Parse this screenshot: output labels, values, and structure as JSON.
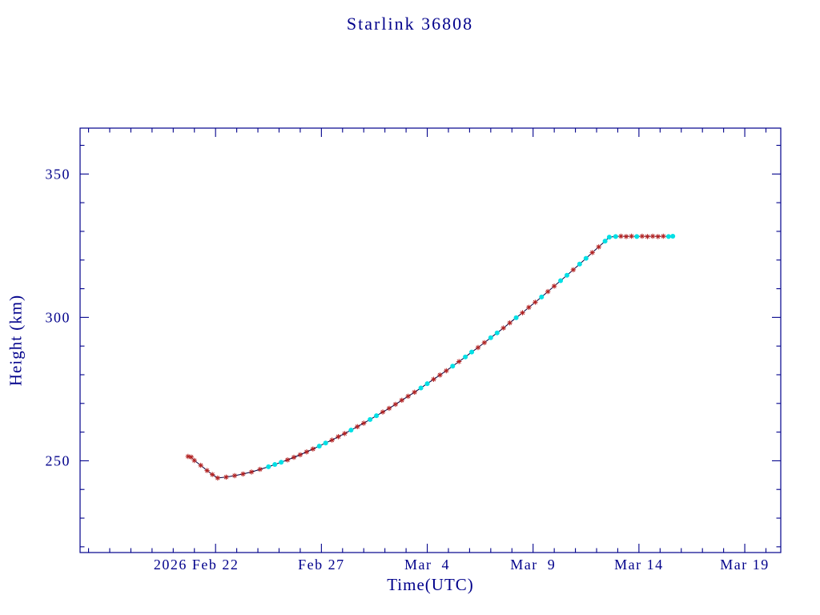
{
  "chart_data": {
    "type": "line",
    "title": "Starlink 36808",
    "xlabel": "Time(UTC)",
    "ylabel": "Height (km)",
    "x_range": [
      -3.4,
      29.7
    ],
    "y_range": [
      218,
      366
    ],
    "x_minor_step": 1,
    "y_minor_step": 10,
    "xticks": [
      {
        "t": 3,
        "label": "2026 Feb 22",
        "dx": -24
      },
      {
        "t": 8,
        "label": "Feb 27",
        "dx": 0
      },
      {
        "t": 13,
        "label": "Mar  4",
        "dx": 0
      },
      {
        "t": 18,
        "label": "Mar  9",
        "dx": 0
      },
      {
        "t": 23,
        "label": "Mar 14",
        "dx": 0
      },
      {
        "t": 28,
        "label": "Mar 19",
        "dx": 0
      }
    ],
    "yticks": [
      {
        "v": 250,
        "label": "250"
      },
      {
        "v": 300,
        "label": "300"
      },
      {
        "v": 350,
        "label": "350"
      }
    ],
    "colors": {
      "axis": "#00008B",
      "line": "#000040",
      "red_marker": "#B22222",
      "cyan_marker": "#00E0E5",
      "background": "#FFFFFF"
    },
    "series": [
      {
        "name": "height_km",
        "marker_key": {
          "r": "red-asterisk",
          "c": "cyan-dot"
        },
        "points": [
          [
            1.7,
            251.5,
            "r"
          ],
          [
            1.85,
            251.3,
            "r"
          ],
          [
            2.0,
            250.1,
            "r"
          ],
          [
            2.3,
            248.4,
            "r"
          ],
          [
            2.6,
            246.6,
            "r"
          ],
          [
            2.85,
            245.2,
            "r"
          ],
          [
            3.1,
            244.0,
            "r"
          ],
          [
            3.5,
            244.3,
            "r"
          ],
          [
            3.9,
            244.8,
            "r"
          ],
          [
            4.3,
            245.4,
            "r"
          ],
          [
            4.7,
            246.1,
            "r"
          ],
          [
            5.1,
            247.0,
            "r"
          ],
          [
            5.5,
            247.9,
            "c"
          ],
          [
            5.8,
            248.7,
            "c"
          ],
          [
            6.1,
            249.5,
            "c"
          ],
          [
            6.4,
            250.3,
            "r"
          ],
          [
            6.7,
            251.2,
            "r"
          ],
          [
            7.0,
            252.1,
            "r"
          ],
          [
            7.3,
            253.1,
            "r"
          ],
          [
            7.6,
            254.1,
            "r"
          ],
          [
            7.9,
            255.1,
            "c"
          ],
          [
            8.2,
            256.2,
            "c"
          ],
          [
            8.5,
            257.2,
            "r"
          ],
          [
            8.8,
            258.4,
            "r"
          ],
          [
            9.1,
            259.5,
            "r"
          ],
          [
            9.4,
            260.7,
            "c"
          ],
          [
            9.7,
            261.9,
            "r"
          ],
          [
            10.0,
            263.1,
            "r"
          ],
          [
            10.3,
            264.4,
            "c"
          ],
          [
            10.6,
            265.7,
            "c"
          ],
          [
            10.9,
            267.0,
            "r"
          ],
          [
            11.2,
            268.3,
            "r"
          ],
          [
            11.5,
            269.7,
            "r"
          ],
          [
            11.8,
            271.1,
            "r"
          ],
          [
            12.1,
            272.5,
            "r"
          ],
          [
            12.4,
            273.9,
            "r"
          ],
          [
            12.7,
            275.4,
            "c"
          ],
          [
            13.0,
            276.9,
            "c"
          ],
          [
            13.3,
            278.4,
            "r"
          ],
          [
            13.6,
            279.9,
            "r"
          ],
          [
            13.9,
            281.4,
            "r"
          ],
          [
            14.2,
            283.0,
            "c"
          ],
          [
            14.5,
            284.6,
            "r"
          ],
          [
            14.8,
            286.2,
            "c"
          ],
          [
            15.1,
            287.9,
            "c"
          ],
          [
            15.4,
            289.5,
            "r"
          ],
          [
            15.7,
            291.2,
            "r"
          ],
          [
            16.0,
            292.9,
            "c"
          ],
          [
            16.3,
            294.6,
            "c"
          ],
          [
            16.6,
            296.3,
            "r"
          ],
          [
            16.9,
            298.1,
            "r"
          ],
          [
            17.2,
            299.9,
            "c"
          ],
          [
            17.5,
            301.6,
            "r"
          ],
          [
            17.8,
            303.5,
            "r"
          ],
          [
            18.1,
            305.3,
            "r"
          ],
          [
            18.4,
            307.1,
            "c"
          ],
          [
            18.7,
            309.0,
            "r"
          ],
          [
            19.0,
            310.9,
            "r"
          ],
          [
            19.3,
            312.8,
            "c"
          ],
          [
            19.6,
            314.7,
            "c"
          ],
          [
            19.9,
            316.6,
            "r"
          ],
          [
            20.2,
            318.6,
            "c"
          ],
          [
            20.5,
            320.6,
            "c"
          ],
          [
            20.8,
            322.6,
            "r"
          ],
          [
            21.1,
            324.6,
            "r"
          ],
          [
            21.4,
            326.6,
            "c"
          ],
          [
            21.6,
            328.0,
            "c"
          ],
          [
            21.9,
            328.2,
            "c"
          ],
          [
            22.15,
            328.3,
            "r"
          ],
          [
            22.4,
            328.2,
            "r"
          ],
          [
            22.65,
            328.3,
            "r"
          ],
          [
            22.9,
            328.2,
            "c"
          ],
          [
            23.15,
            328.3,
            "r"
          ],
          [
            23.4,
            328.2,
            "r"
          ],
          [
            23.65,
            328.3,
            "r"
          ],
          [
            23.9,
            328.2,
            "r"
          ],
          [
            24.15,
            328.3,
            "r"
          ],
          [
            24.4,
            328.2,
            "c"
          ],
          [
            24.6,
            328.3,
            "c"
          ]
        ]
      }
    ]
  }
}
